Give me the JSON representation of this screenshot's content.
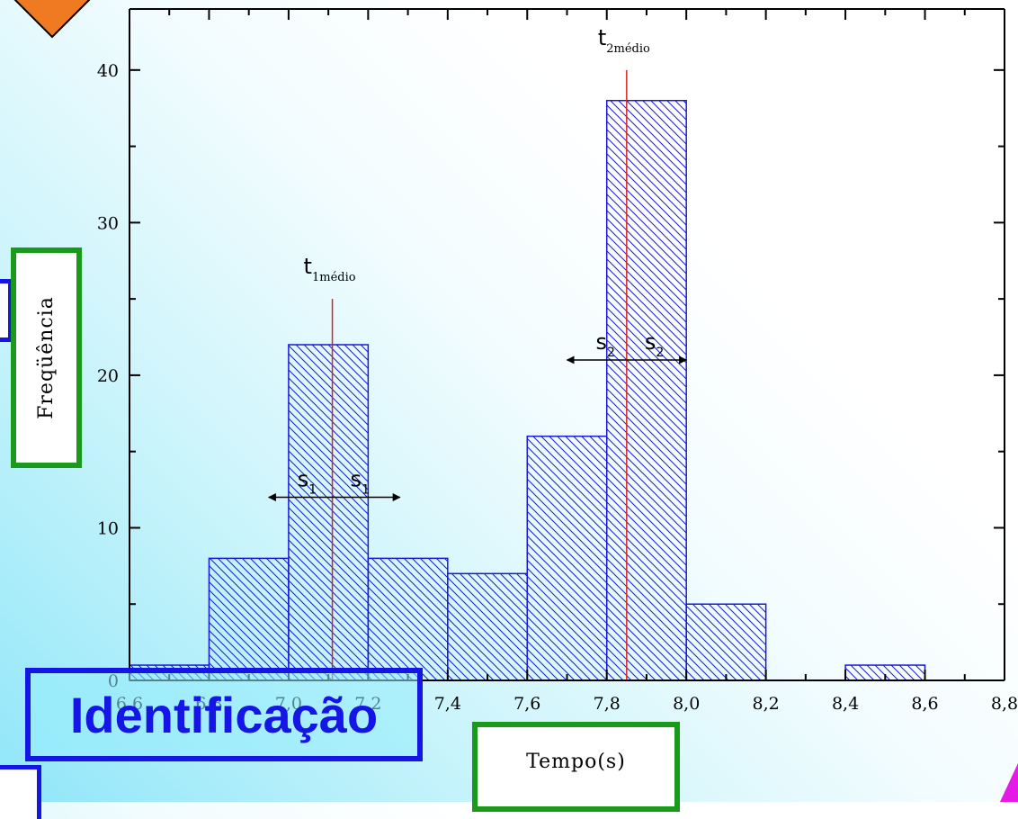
{
  "chart_data": {
    "type": "bar",
    "xlabel": "Tempo(s)",
    "ylabel": "Freqüência",
    "xlim": [
      6.6,
      8.8
    ],
    "ylim": [
      0,
      44
    ],
    "x_ticks": [
      {
        "value": 6.6,
        "label": "6,6"
      },
      {
        "value": 6.8,
        "label": "6,8"
      },
      {
        "value": 7.0,
        "label": "7,0"
      },
      {
        "value": 7.2,
        "label": "7,2"
      },
      {
        "value": 7.4,
        "label": "7,4"
      },
      {
        "value": 7.6,
        "label": "7,6"
      },
      {
        "value": 7.8,
        "label": "7,8"
      },
      {
        "value": 8.0,
        "label": "8,0"
      },
      {
        "value": 8.2,
        "label": "8,2"
      },
      {
        "value": 8.4,
        "label": "8,4"
      },
      {
        "value": 8.6,
        "label": "8,6"
      },
      {
        "value": 8.8,
        "label": "8,8"
      }
    ],
    "y_ticks": [
      {
        "value": 0,
        "label": "0"
      },
      {
        "value": 10,
        "label": "10"
      },
      {
        "value": 20,
        "label": "20"
      },
      {
        "value": 30,
        "label": "30"
      },
      {
        "value": 40,
        "label": "40"
      }
    ],
    "bins": [
      {
        "start": 6.6,
        "end": 6.8,
        "value": 1
      },
      {
        "start": 6.8,
        "end": 7.0,
        "value": 8
      },
      {
        "start": 7.0,
        "end": 7.2,
        "value": 22
      },
      {
        "start": 7.2,
        "end": 7.4,
        "value": 8
      },
      {
        "start": 7.4,
        "end": 7.6,
        "value": 7
      },
      {
        "start": 7.6,
        "end": 7.8,
        "value": 16
      },
      {
        "start": 7.8,
        "end": 8.0,
        "value": 38
      },
      {
        "start": 8.0,
        "end": 8.2,
        "value": 5
      },
      {
        "start": 8.2,
        "end": 8.4,
        "value": 0
      },
      {
        "start": 8.4,
        "end": 8.6,
        "value": 1
      }
    ],
    "mean_lines": [
      {
        "x": 7.11,
        "top": 25,
        "label_main": "t",
        "label_sub": "1médio"
      },
      {
        "x": 7.85,
        "top": 40,
        "label_main": "t",
        "label_sub": "2médio"
      }
    ],
    "spread_arrows": [
      {
        "center": 7.11,
        "from": 6.95,
        "to": 7.28,
        "y": 12,
        "label_main": "s",
        "label_sub": "1"
      },
      {
        "center": 7.85,
        "from": 7.7,
        "to": 8.0,
        "y": 21,
        "label_main": "s",
        "label_sub": "2"
      }
    ],
    "colors": {
      "bars": "#1a1ad6",
      "mean_line": "#e0201a",
      "arrow": "#000000"
    },
    "grid": false,
    "legend": "none"
  },
  "overlay": {
    "ylabel_box": "Freqüência",
    "xlabel_box": "Tempo(s)",
    "ident_box": "Identificação",
    "colors": {
      "green_border": "#1a9a1a",
      "blue_border": "#1515e6",
      "orange_shape": "#f07a22"
    }
  }
}
